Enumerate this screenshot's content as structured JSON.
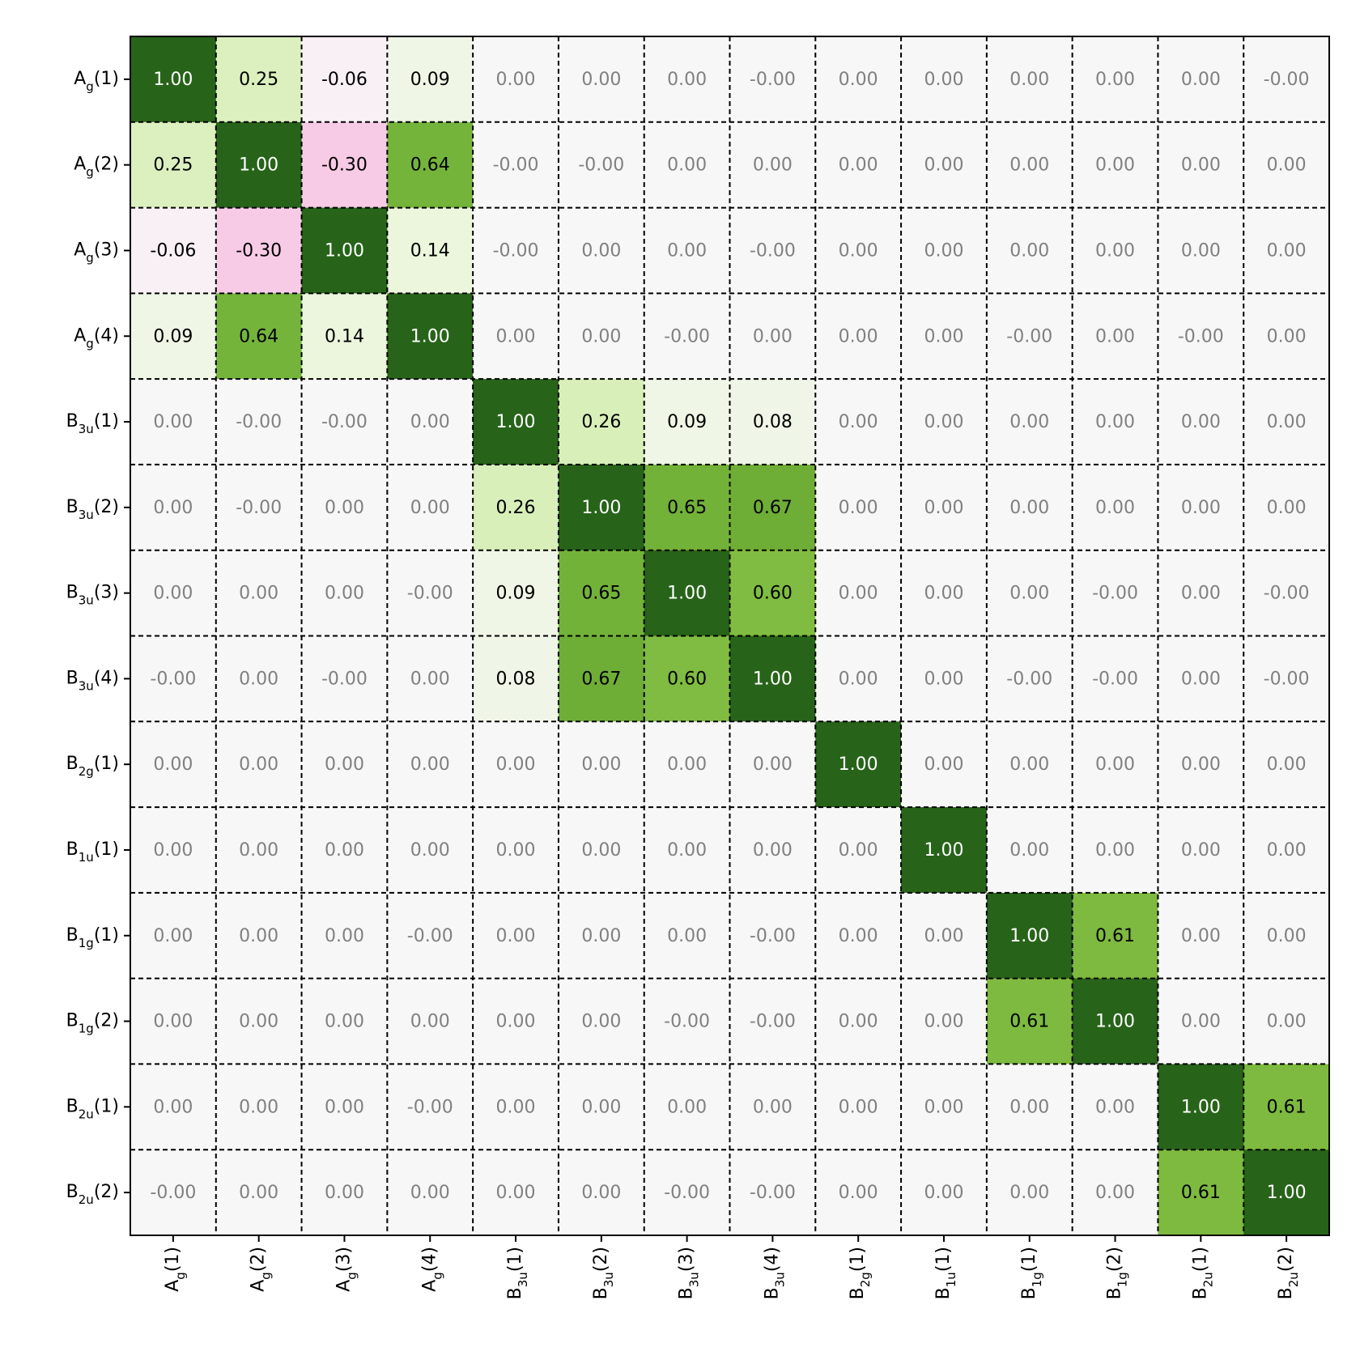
{
  "chart_data": {
    "type": "heatmap",
    "categories": [
      [
        "A",
        "g",
        "(1)"
      ],
      [
        "A",
        "g",
        "(2)"
      ],
      [
        "A",
        "g",
        "(3)"
      ],
      [
        "A",
        "g",
        "(4)"
      ],
      [
        "B",
        "3u",
        "(1)"
      ],
      [
        "B",
        "3u",
        "(2)"
      ],
      [
        "B",
        "3u",
        "(3)"
      ],
      [
        "B",
        "3u",
        "(4)"
      ],
      [
        "B",
        "2g",
        "(1)"
      ],
      [
        "B",
        "1u",
        "(1)"
      ],
      [
        "B",
        "1g",
        "(1)"
      ],
      [
        "B",
        "1g",
        "(2)"
      ],
      [
        "B",
        "2u",
        "(1)"
      ],
      [
        "B",
        "2u",
        "(2)"
      ]
    ],
    "values": [
      [
        1,
        0.25,
        -0.06,
        0.09,
        0,
        0,
        0,
        0,
        0,
        0,
        0,
        0,
        0,
        0
      ],
      [
        0.25,
        1,
        -0.3,
        0.64,
        0,
        0,
        0,
        0,
        0,
        0,
        0,
        0,
        0,
        0
      ],
      [
        -0.06,
        -0.3,
        1,
        0.14,
        0,
        0,
        0,
        0,
        0,
        0,
        0,
        0,
        0,
        0
      ],
      [
        0.09,
        0.64,
        0.14,
        1,
        0,
        0,
        0,
        0,
        0,
        0,
        0,
        0,
        0,
        0
      ],
      [
        0,
        0,
        0,
        0,
        1,
        0.26,
        0.09,
        0.08,
        0,
        0,
        0,
        0,
        0,
        0
      ],
      [
        0,
        0,
        0,
        0,
        0.26,
        1,
        0.65,
        0.67,
        0,
        0,
        0,
        0,
        0,
        0
      ],
      [
        0,
        0,
        0,
        0,
        0.09,
        0.65,
        1,
        0.6,
        0,
        0,
        0,
        0,
        0,
        0
      ],
      [
        0,
        0,
        0,
        0,
        0.08,
        0.67,
        0.6,
        1,
        0,
        0,
        0,
        0,
        0,
        0
      ],
      [
        0,
        0,
        0,
        0,
        0,
        0,
        0,
        0,
        1,
        0,
        0,
        0,
        0,
        0
      ],
      [
        0,
        0,
        0,
        0,
        0,
        0,
        0,
        0,
        0,
        1,
        0,
        0,
        0,
        0
      ],
      [
        0,
        0,
        0,
        0,
        0,
        0,
        0,
        0,
        0,
        0,
        1,
        0.61,
        0,
        0
      ],
      [
        0,
        0,
        0,
        0,
        0,
        0,
        0,
        0,
        0,
        0,
        0.61,
        1,
        0,
        0
      ],
      [
        0,
        0,
        0,
        0,
        0,
        0,
        0,
        0,
        0,
        0,
        0,
        0,
        1,
        0.61
      ],
      [
        0,
        0,
        0,
        0,
        0,
        0,
        0,
        0,
        0,
        0,
        0,
        0,
        0.61,
        1
      ]
    ],
    "value_labels": [
      [
        "1.00",
        "0.25",
        "-0.06",
        "0.09",
        "0.00",
        "0.00",
        "0.00",
        "-0.00",
        "0.00",
        "0.00",
        "0.00",
        "0.00",
        "0.00",
        "-0.00"
      ],
      [
        "0.25",
        "1.00",
        "-0.30",
        "0.64",
        "-0.00",
        "-0.00",
        "0.00",
        "0.00",
        "0.00",
        "0.00",
        "0.00",
        "0.00",
        "0.00",
        "0.00"
      ],
      [
        "-0.06",
        "-0.30",
        "1.00",
        "0.14",
        "-0.00",
        "0.00",
        "0.00",
        "-0.00",
        "0.00",
        "0.00",
        "0.00",
        "0.00",
        "0.00",
        "0.00"
      ],
      [
        "0.09",
        "0.64",
        "0.14",
        "1.00",
        "0.00",
        "0.00",
        "-0.00",
        "0.00",
        "0.00",
        "0.00",
        "-0.00",
        "0.00",
        "-0.00",
        "0.00"
      ],
      [
        "0.00",
        "-0.00",
        "-0.00",
        "0.00",
        "1.00",
        "0.26",
        "0.09",
        "0.08",
        "0.00",
        "0.00",
        "0.00",
        "0.00",
        "0.00",
        "0.00"
      ],
      [
        "0.00",
        "-0.00",
        "0.00",
        "0.00",
        "0.26",
        "1.00",
        "0.65",
        "0.67",
        "0.00",
        "0.00",
        "0.00",
        "0.00",
        "0.00",
        "0.00"
      ],
      [
        "0.00",
        "0.00",
        "0.00",
        "-0.00",
        "0.09",
        "0.65",
        "1.00",
        "0.60",
        "0.00",
        "0.00",
        "0.00",
        "-0.00",
        "0.00",
        "-0.00"
      ],
      [
        "-0.00",
        "0.00",
        "-0.00",
        "0.00",
        "0.08",
        "0.67",
        "0.60",
        "1.00",
        "0.00",
        "0.00",
        "-0.00",
        "-0.00",
        "0.00",
        "-0.00"
      ],
      [
        "0.00",
        "0.00",
        "0.00",
        "0.00",
        "0.00",
        "0.00",
        "0.00",
        "0.00",
        "1.00",
        "0.00",
        "0.00",
        "0.00",
        "0.00",
        "0.00"
      ],
      [
        "0.00",
        "0.00",
        "0.00",
        "0.00",
        "0.00",
        "0.00",
        "0.00",
        "0.00",
        "0.00",
        "1.00",
        "0.00",
        "0.00",
        "0.00",
        "0.00"
      ],
      [
        "0.00",
        "0.00",
        "0.00",
        "-0.00",
        "0.00",
        "0.00",
        "0.00",
        "-0.00",
        "0.00",
        "0.00",
        "1.00",
        "0.61",
        "0.00",
        "0.00"
      ],
      [
        "0.00",
        "0.00",
        "0.00",
        "0.00",
        "0.00",
        "0.00",
        "-0.00",
        "-0.00",
        "0.00",
        "0.00",
        "0.61",
        "1.00",
        "0.00",
        "0.00"
      ],
      [
        "0.00",
        "0.00",
        "0.00",
        "-0.00",
        "0.00",
        "0.00",
        "0.00",
        "0.00",
        "0.00",
        "0.00",
        "0.00",
        "0.00",
        "1.00",
        "0.61"
      ],
      [
        "-0.00",
        "0.00",
        "0.00",
        "0.00",
        "0.00",
        "0.00",
        "-0.00",
        "-0.00",
        "0.00",
        "0.00",
        "0.00",
        "0.00",
        "0.61",
        "1.00"
      ]
    ],
    "clim": [
      -1,
      1
    ],
    "colormap": [
      "#8e0152",
      "#c51b7d",
      "#de77ae",
      "#f1b6da",
      "#fde0ef",
      "#f7f7f7",
      "#e6f5d0",
      "#b8e186",
      "#7fbc41",
      "#4d9221",
      "#276419"
    ]
  }
}
